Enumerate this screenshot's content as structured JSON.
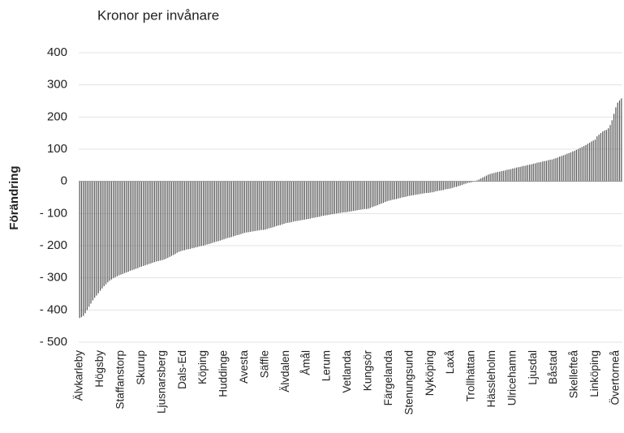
{
  "chart_data": {
    "type": "bar",
    "title": "Kronor per invånare",
    "y_label": "Förändring",
    "categories": [
      "Älvkarleby",
      null,
      null,
      null,
      null,
      null,
      null,
      null,
      null,
      null,
      null,
      "Högsby",
      null,
      null,
      null,
      null,
      null,
      null,
      null,
      null,
      null,
      null,
      "Staffanstorp",
      null,
      null,
      null,
      null,
      null,
      null,
      null,
      null,
      null,
      null,
      "Skurup",
      null,
      null,
      null,
      null,
      null,
      null,
      null,
      null,
      null,
      null,
      "Ljusnarsberg",
      null,
      null,
      null,
      null,
      null,
      null,
      null,
      null,
      null,
      null,
      "Dals-Ed",
      null,
      null,
      null,
      null,
      null,
      null,
      null,
      null,
      null,
      null,
      "Köping",
      null,
      null,
      null,
      null,
      null,
      null,
      null,
      null,
      null,
      null,
      "Huddinge",
      null,
      null,
      null,
      null,
      null,
      null,
      null,
      null,
      null,
      null,
      "Avesta",
      null,
      null,
      null,
      null,
      null,
      null,
      null,
      null,
      null,
      null,
      "Säffle",
      null,
      null,
      null,
      null,
      null,
      null,
      null,
      null,
      null,
      null,
      "Älvdalen",
      null,
      null,
      null,
      null,
      null,
      null,
      null,
      null,
      null,
      null,
      "Åmål",
      null,
      null,
      null,
      null,
      null,
      null,
      null,
      null,
      null,
      null,
      "Lerum",
      null,
      null,
      null,
      null,
      null,
      null,
      null,
      null,
      null,
      null,
      "Vetlanda",
      null,
      null,
      null,
      null,
      null,
      null,
      null,
      null,
      null,
      null,
      "Kungsör",
      null,
      null,
      null,
      null,
      null,
      null,
      null,
      null,
      null,
      null,
      "Färgelanda",
      null,
      null,
      null,
      null,
      null,
      null,
      null,
      null,
      null,
      null,
      "Stenungsund",
      null,
      null,
      null,
      null,
      null,
      null,
      null,
      null,
      null,
      null,
      "Nyköping",
      null,
      null,
      null,
      null,
      null,
      null,
      null,
      null,
      null,
      null,
      "Laxå",
      null,
      null,
      null,
      null,
      null,
      null,
      null,
      null,
      null,
      null,
      "Trollhättan",
      null,
      null,
      null,
      null,
      null,
      null,
      null,
      null,
      null,
      null,
      "Hässleholm",
      null,
      null,
      null,
      null,
      null,
      null,
      null,
      null,
      null,
      null,
      "Ulricehamn",
      null,
      null,
      null,
      null,
      null,
      null,
      null,
      null,
      null,
      null,
      "Ljusdal",
      null,
      null,
      null,
      null,
      null,
      null,
      null,
      null,
      null,
      null,
      "Båstad",
      null,
      null,
      null,
      null,
      null,
      null,
      null,
      null,
      null,
      null,
      "Skellefteå",
      null,
      null,
      null,
      null,
      null,
      null,
      null,
      null,
      null,
      null,
      "Linköping",
      null,
      null,
      null,
      null,
      null,
      null,
      null,
      null,
      null,
      null,
      "Övertorneå",
      null,
      null,
      null
    ],
    "values": [
      -425,
      -422,
      -418,
      -410,
      -400,
      -390,
      -380,
      -370,
      -362,
      -355,
      -348,
      -340,
      -333,
      -326,
      -320,
      -314,
      -309,
      -305,
      -301,
      -298,
      -295,
      -292,
      -290,
      -288,
      -285,
      -283,
      -281,
      -278,
      -276,
      -274,
      -272,
      -270,
      -267,
      -265,
      -263,
      -261,
      -259,
      -257,
      -255,
      -253,
      -251,
      -249,
      -248,
      -246,
      -245,
      -243,
      -241,
      -238,
      -235,
      -232,
      -229,
      -226,
      -222,
      -219,
      -217,
      -215,
      -214,
      -212,
      -211,
      -210,
      -208,
      -207,
      -205,
      -204,
      -202,
      -201,
      -200,
      -198,
      -196,
      -195,
      -193,
      -191,
      -189,
      -187,
      -186,
      -184,
      -182,
      -180,
      -178,
      -176,
      -175,
      -173,
      -171,
      -169,
      -167,
      -166,
      -164,
      -162,
      -160,
      -159,
      -158,
      -157,
      -156,
      -155,
      -154,
      -153,
      -152,
      -151,
      -151,
      -150,
      -148,
      -146,
      -145,
      -143,
      -141,
      -139,
      -137,
      -136,
      -134,
      -132,
      -130,
      -129,
      -128,
      -127,
      -125,
      -124,
      -123,
      -122,
      -121,
      -120,
      -119,
      -118,
      -117,
      -116,
      -114,
      -113,
      -112,
      -111,
      -110,
      -108,
      -107,
      -106,
      -105,
      -104,
      -103,
      -102,
      -101,
      -100,
      -99,
      -98,
      -97,
      -96,
      -96,
      -95,
      -94,
      -93,
      -92,
      -91,
      -90,
      -89,
      -88,
      -87,
      -86,
      -86,
      -85,
      -83,
      -80,
      -78,
      -76,
      -74,
      -71,
      -69,
      -67,
      -64,
      -62,
      -60,
      -59,
      -57,
      -56,
      -55,
      -53,
      -52,
      -50,
      -49,
      -48,
      -46,
      -45,
      -44,
      -43,
      -42,
      -41,
      -40,
      -39,
      -38,
      -37,
      -36,
      -36,
      -35,
      -34,
      -33,
      -31,
      -30,
      -29,
      -28,
      -27,
      -25,
      -24,
      -23,
      -22,
      -20,
      -18,
      -17,
      -15,
      -13,
      -11,
      -9,
      -7,
      -5,
      -4,
      -3,
      -1,
      1,
      3,
      6,
      9,
      12,
      15,
      18,
      21,
      23,
      25,
      26,
      28,
      29,
      30,
      32,
      33,
      34,
      36,
      37,
      38,
      40,
      41,
      43,
      44,
      45,
      47,
      48,
      49,
      51,
      52,
      53,
      55,
      56,
      58,
      59,
      60,
      62,
      63,
      64,
      66,
      67,
      68,
      70,
      72,
      74,
      77,
      79,
      81,
      83,
      86,
      88,
      90,
      93,
      95,
      98,
      101,
      104,
      107,
      110,
      113,
      117,
      120,
      124,
      127,
      130,
      140,
      145,
      150,
      155,
      158,
      160,
      165,
      175,
      190,
      210,
      230,
      245,
      252,
      258
    ],
    "color": "#555555",
    "ylim": [
      -500,
      400
    ],
    "yticks": [
      {
        "value": -500,
        "label": "- 500"
      },
      {
        "value": -400,
        "label": "- 400"
      },
      {
        "value": -300,
        "label": "- 300"
      },
      {
        "value": -200,
        "label": "- 200"
      },
      {
        "value": -100,
        "label": "- 100"
      },
      0,
      100,
      200,
      300,
      400
    ],
    "grid": true
  }
}
